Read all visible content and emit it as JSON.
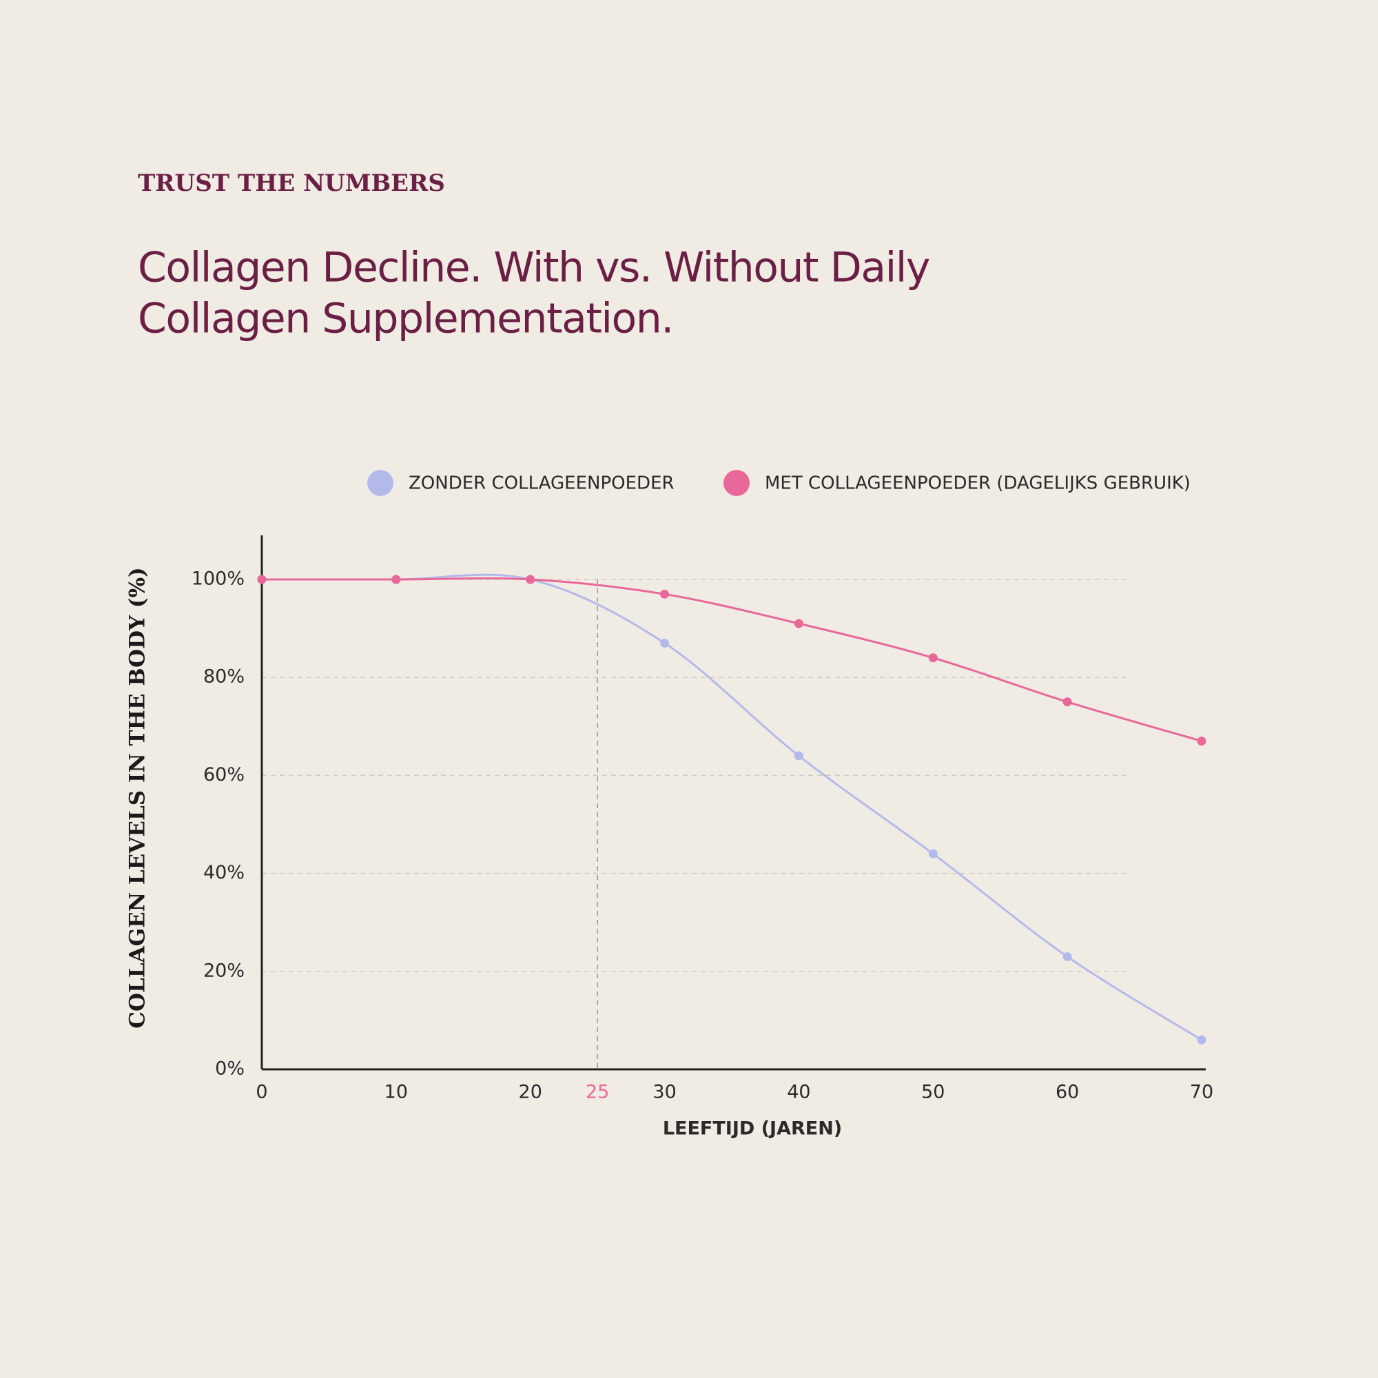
{
  "eyebrow": "TRUST THE NUMBERS",
  "chart_data": {
    "type": "line",
    "title": [
      "Collagen Decline. With vs. Without Daily",
      "Collagen Supplementation."
    ],
    "x_label": "LEEFTIJD (JAREN)",
    "y_label": "COLLAGEN LEVELS IN THE BODY (%)",
    "x": [
      0,
      10,
      20,
      30,
      40,
      50,
      60,
      70
    ],
    "series": [
      {
        "name": "ZONDER COLLAGEENPOEDER",
        "color": "#b4b9ec",
        "values": [
          100,
          100,
          100,
          87,
          64,
          44,
          23,
          6
        ]
      },
      {
        "name": "MET COLLAGEENPOEDER (DAGELIJKS GEBRUIK)",
        "color": "#e8689a",
        "values": [
          100,
          100,
          100,
          97,
          91,
          84,
          75,
          67
        ]
      }
    ],
    "xlim": [
      0,
      70
    ],
    "ylim": [
      0,
      109
    ],
    "xticks": [
      0,
      10,
      20,
      25,
      30,
      40,
      50,
      60,
      70
    ],
    "highlight_x": 25,
    "yticks": [
      {
        "value": 0,
        "label": "0%"
      },
      {
        "value": 20,
        "label": "20%"
      },
      {
        "value": 40,
        "label": "40%"
      },
      {
        "value": 60,
        "label": "60%"
      },
      {
        "value": 80,
        "label": "80%"
      },
      {
        "value": 100,
        "label": "100%"
      }
    ],
    "grid": true,
    "legend": "top"
  }
}
